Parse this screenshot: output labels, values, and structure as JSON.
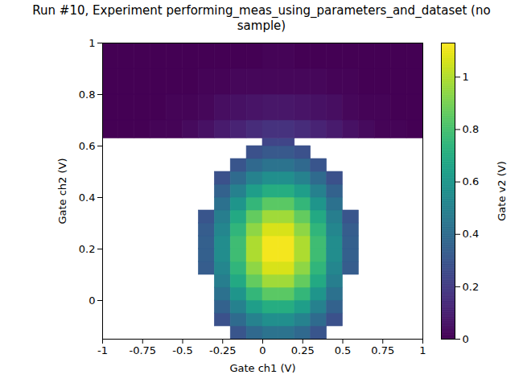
{
  "chart_data": {
    "type": "heatmap",
    "title": "Run #10, Experiment performing_meas_using_parameters_and_dataset (no sample)",
    "x_label": "Gate ch1 (V)",
    "y_label": "Gate ch2 (V)",
    "xlim": [
      -1,
      1
    ],
    "xticks": [
      -1,
      -0.75,
      -0.5,
      -0.25,
      0,
      0.25,
      0.5,
      0.75,
      1
    ],
    "ylim": [
      -0.15,
      1
    ],
    "yticks": [
      0,
      0.2,
      0.4,
      0.6,
      0.8,
      1
    ],
    "color": "viridis",
    "x_edges": [
      -1,
      -0.9,
      -0.8,
      -0.7,
      -0.6,
      -0.5,
      -0.4,
      -0.3,
      -0.2,
      -0.1,
      0,
      0.1,
      0.2,
      0.3,
      0.4,
      0.5,
      0.6,
      0.7,
      0.8,
      0.9,
      1
    ],
    "y_edges": [
      -0.15,
      -0.1,
      -0.05,
      0,
      0.05,
      0.1,
      0.15,
      0.2,
      0.25,
      0.3,
      0.35,
      0.4,
      0.45,
      0.5,
      0.55,
      0.6,
      0.63,
      0.7,
      0.8,
      0.9,
      1
    ],
    "z": [
      [
        null,
        null,
        null,
        null,
        null,
        null,
        null,
        null,
        0.3,
        0.38,
        0.43,
        0.43,
        0.38,
        0.3,
        null,
        null,
        null,
        null,
        null,
        null
      ],
      [
        null,
        null,
        null,
        null,
        null,
        null,
        null,
        0.28,
        0.39,
        0.5,
        0.56,
        0.56,
        0.5,
        0.39,
        0.28,
        null,
        null,
        null,
        null,
        null
      ],
      [
        null,
        null,
        null,
        null,
        null,
        null,
        null,
        0.35,
        0.49,
        0.63,
        0.7,
        0.7,
        0.63,
        0.49,
        0.35,
        null,
        null,
        null,
        null,
        null
      ],
      [
        null,
        null,
        null,
        null,
        null,
        null,
        null,
        0.42,
        0.59,
        0.75,
        0.84,
        0.84,
        0.75,
        0.59,
        0.42,
        null,
        null,
        null,
        null,
        null
      ],
      [
        null,
        null,
        null,
        null,
        null,
        null,
        null,
        0.48,
        0.68,
        0.86,
        0.97,
        0.97,
        0.86,
        0.68,
        0.48,
        null,
        null,
        null,
        null,
        null
      ],
      [
        null,
        null,
        null,
        null,
        null,
        null,
        0.33,
        0.52,
        0.74,
        0.94,
        1.06,
        1.06,
        0.94,
        0.74,
        0.52,
        0.33,
        null,
        null,
        null,
        null
      ],
      [
        null,
        null,
        null,
        null,
        null,
        null,
        0.34,
        0.55,
        0.78,
        0.99,
        1.11,
        1.11,
        0.99,
        0.78,
        0.55,
        0.34,
        null,
        null,
        null,
        null
      ],
      [
        null,
        null,
        null,
        null,
        null,
        null,
        0.34,
        0.55,
        0.78,
        0.99,
        1.11,
        1.11,
        0.99,
        0.78,
        0.55,
        0.34,
        null,
        null,
        null,
        null
      ],
      [
        null,
        null,
        null,
        null,
        null,
        null,
        0.33,
        0.52,
        0.74,
        0.94,
        1.06,
        1.06,
        0.94,
        0.74,
        0.52,
        0.33,
        null,
        null,
        null,
        null
      ],
      [
        null,
        null,
        null,
        null,
        null,
        null,
        0.3,
        0.48,
        0.68,
        0.86,
        0.97,
        0.97,
        0.86,
        0.68,
        0.48,
        0.3,
        null,
        null,
        null,
        null
      ],
      [
        null,
        null,
        null,
        null,
        null,
        null,
        null,
        0.42,
        0.59,
        0.75,
        0.84,
        0.84,
        0.75,
        0.59,
        0.42,
        null,
        null,
        null,
        null,
        null
      ],
      [
        null,
        null,
        null,
        null,
        null,
        null,
        null,
        0.35,
        0.49,
        0.63,
        0.7,
        0.7,
        0.63,
        0.49,
        0.35,
        null,
        null,
        null,
        null,
        null
      ],
      [
        null,
        null,
        null,
        null,
        null,
        null,
        null,
        0.28,
        0.39,
        0.5,
        0.56,
        0.56,
        0.5,
        0.39,
        0.28,
        null,
        null,
        null,
        null,
        null
      ],
      [
        null,
        null,
        null,
        null,
        null,
        null,
        null,
        null,
        0.3,
        0.38,
        0.43,
        0.43,
        0.38,
        0.3,
        null,
        null,
        null,
        null,
        null,
        null
      ],
      [
        null,
        null,
        null,
        null,
        null,
        null,
        null,
        null,
        null,
        0.28,
        0.31,
        0.31,
        0.28,
        null,
        null,
        null,
        null,
        null,
        null,
        null
      ],
      [
        null,
        null,
        null,
        null,
        null,
        null,
        null,
        null,
        null,
        null,
        0.23,
        0.23,
        null,
        null,
        null,
        null,
        null,
        null,
        null,
        null
      ],
      [
        0,
        0,
        0,
        0.01,
        0.01,
        0.03,
        0.05,
        0.08,
        0.11,
        0.14,
        0.16,
        0.16,
        0.14,
        0.11,
        0.08,
        0.05,
        0.03,
        0.01,
        0.01,
        0
      ],
      [
        0,
        0,
        0,
        0,
        0.01,
        0.01,
        0.02,
        0.04,
        0.05,
        0.06,
        0.07,
        0.07,
        0.06,
        0.05,
        0.04,
        0.02,
        0.01,
        0.01,
        0,
        0
      ],
      [
        0,
        0,
        0,
        0,
        0,
        0,
        0.01,
        0.01,
        0.02,
        0.02,
        0.02,
        0.02,
        0.02,
        0.02,
        0.01,
        0.01,
        0,
        0,
        0,
        0
      ],
      [
        0,
        0,
        0,
        0,
        0,
        0,
        0,
        0,
        0,
        0,
        0.01,
        0.01,
        0,
        0,
        0,
        0,
        0,
        0,
        0,
        0
      ]
    ],
    "colorbar": {
      "label": "Gate v2 (V)",
      "range": [
        0,
        1.13
      ],
      "ticks": [
        0,
        0.2,
        0.4,
        0.6,
        0.8,
        1
      ]
    }
  }
}
